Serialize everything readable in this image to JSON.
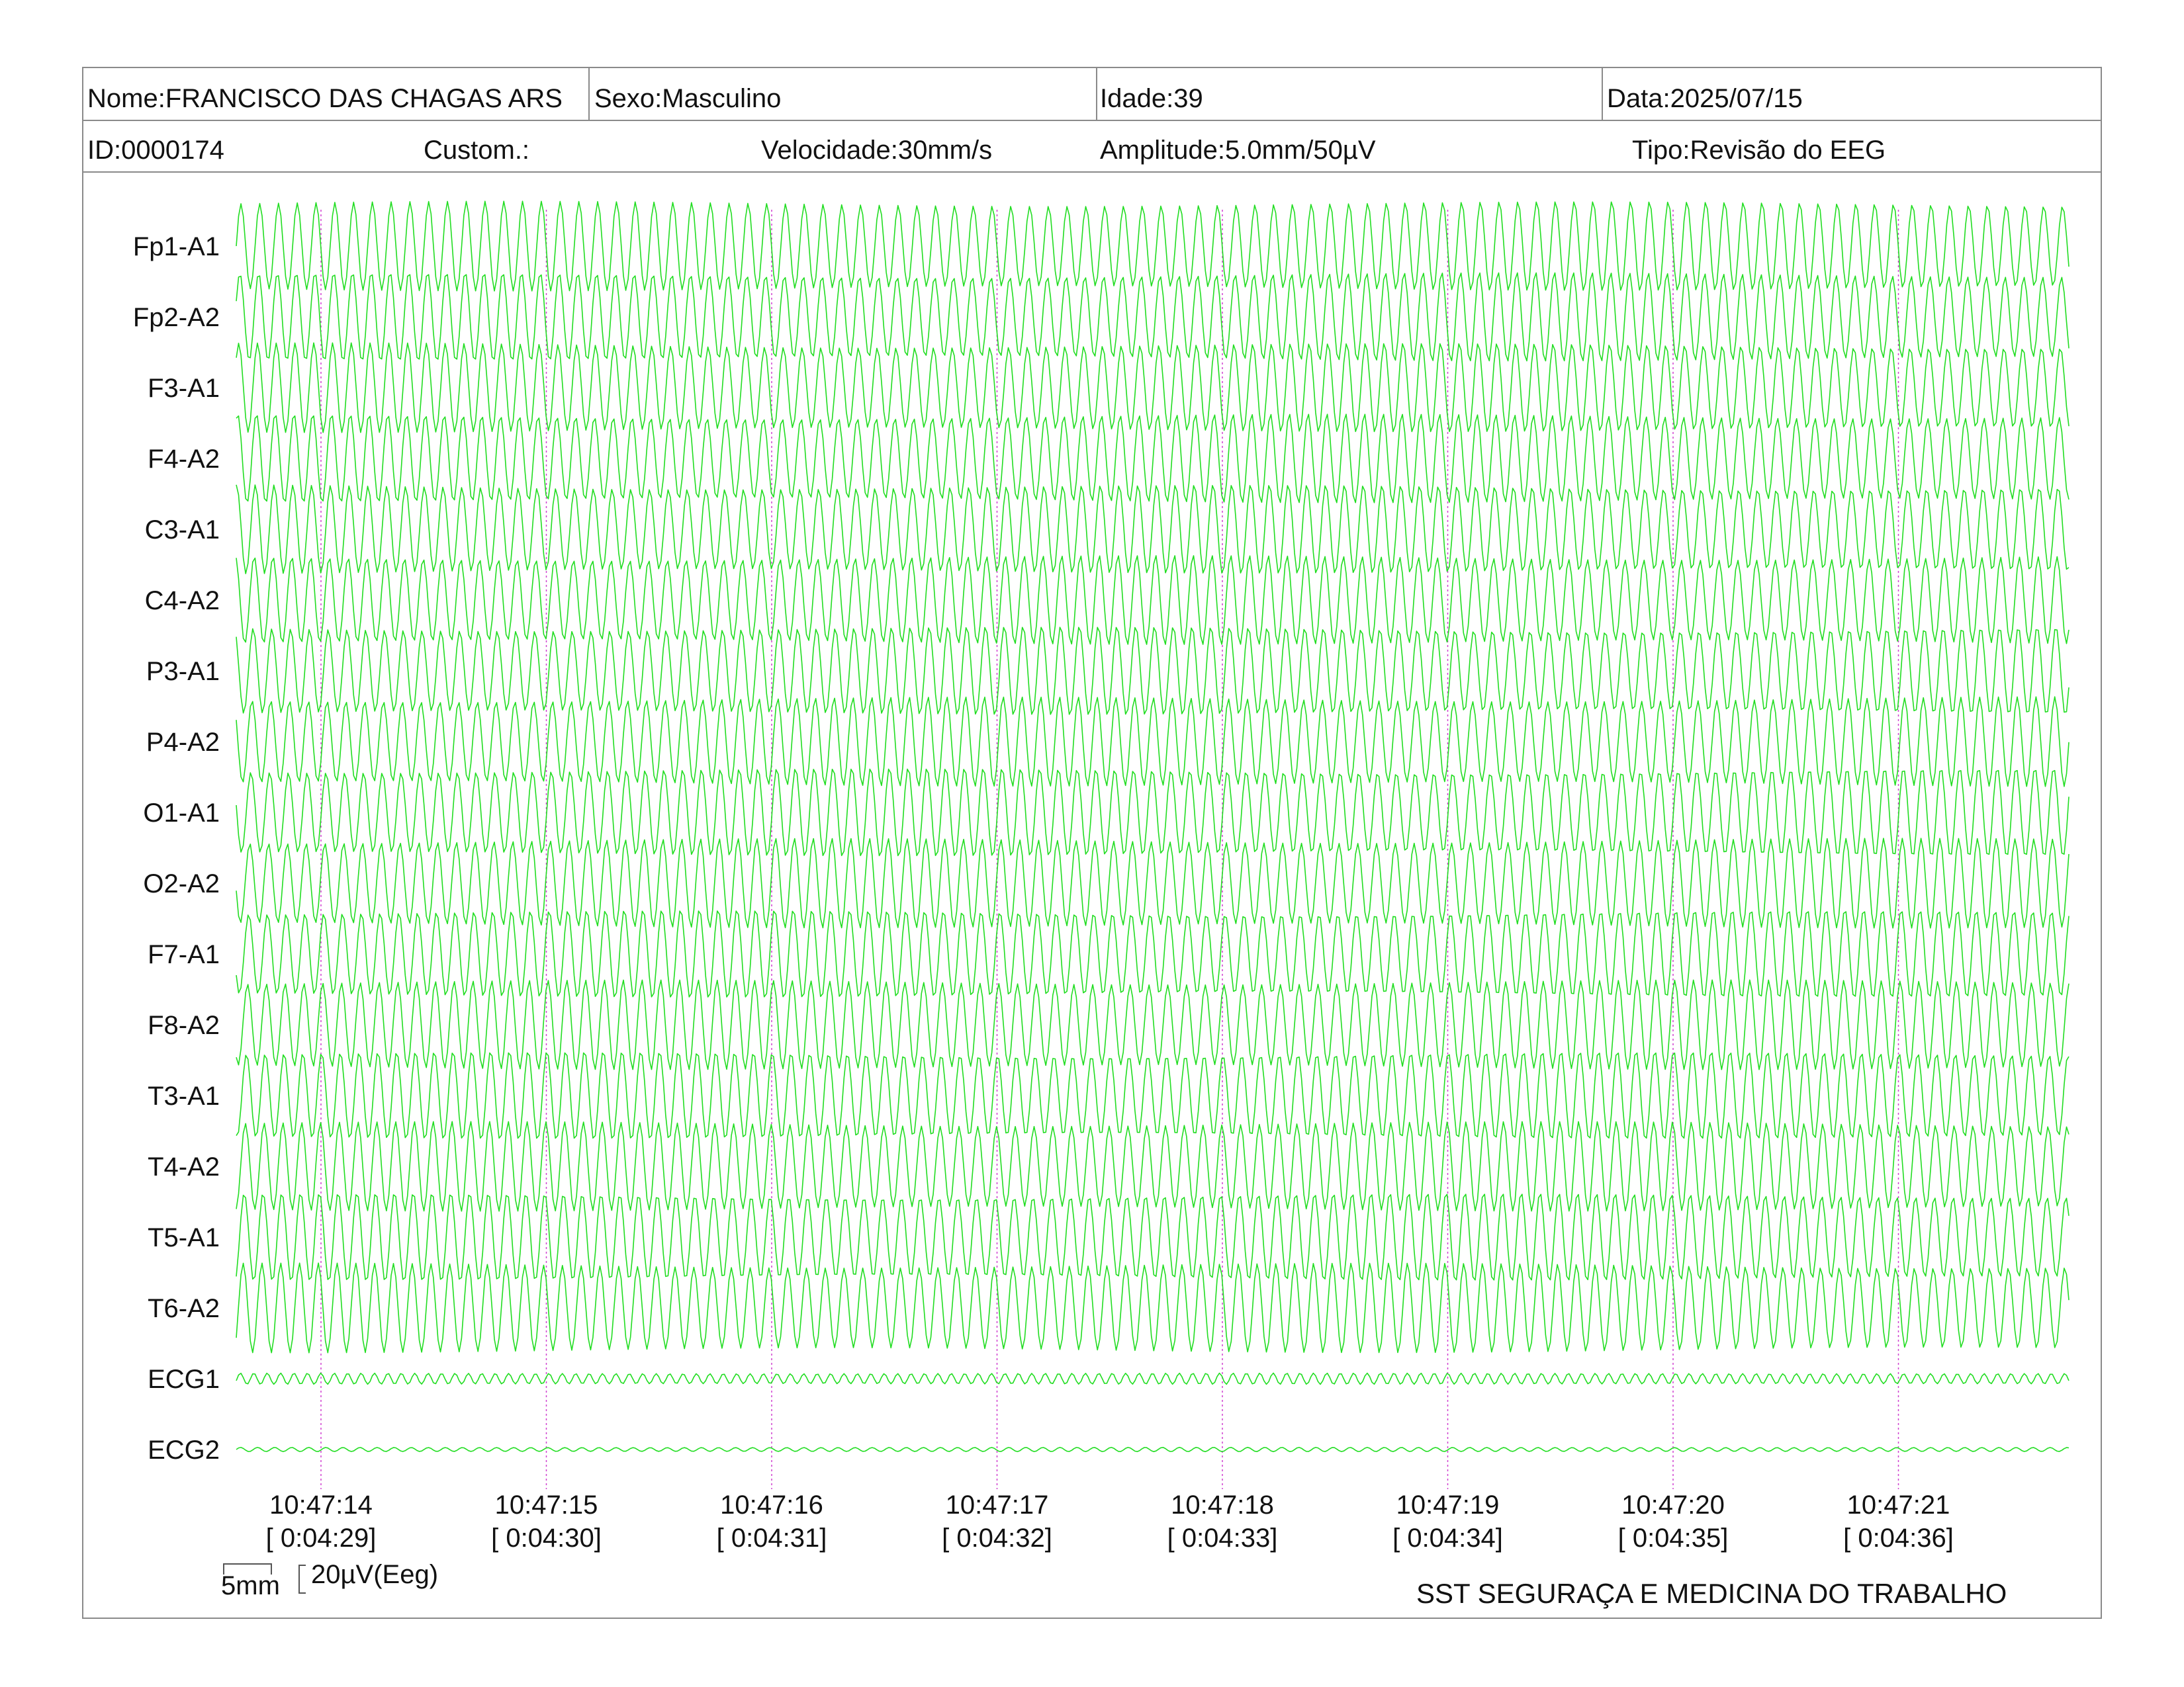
{
  "header": {
    "nome": "Nome:FRANCISCO DAS CHAGAS ARS",
    "sexo": "Sexo:Masculino",
    "idade": "Idade:39",
    "data": "Data:2025/07/15",
    "id": "ID:0000174",
    "custom": "Custom.:",
    "velocidade": "Velocidade:30mm/s",
    "amplitude": "Amplitude:5.0mm/50µV",
    "tipo": "Tipo:Revisão do EEG"
  },
  "footer": {
    "organization": "SST SEGURAÇA E MEDICINA DO TRABALHO",
    "scale_time": "5mm",
    "scale_amp": "20µV(Eeg)"
  },
  "colors": {
    "trace": "#22dd22",
    "marker": "#d040d0",
    "border": "#8a8a8a"
  },
  "chart_data": {
    "type": "line",
    "title": "",
    "channels": [
      "Fp1-A1",
      "Fp2-A2",
      "F3-A1",
      "F4-A2",
      "C3-A1",
      "C4-A2",
      "P3-A1",
      "P4-A2",
      "O1-A1",
      "O2-A2",
      "F7-A1",
      "F8-A2",
      "T3-A1",
      "T4-A2",
      "T5-A1",
      "T6-A2",
      "ECG1",
      "ECG2"
    ],
    "time_marks": [
      {
        "clock": "10:47:14",
        "elapsed": "[ 0:04:29]"
      },
      {
        "clock": "10:47:15",
        "elapsed": "[ 0:04:30]"
      },
      {
        "clock": "10:47:16",
        "elapsed": "[ 0:04:31]"
      },
      {
        "clock": "10:47:17",
        "elapsed": "[ 0:04:32]"
      },
      {
        "clock": "10:47:18",
        "elapsed": "[ 0:04:33]"
      },
      {
        "clock": "10:47:19",
        "elapsed": "[ 0:04:34]"
      },
      {
        "clock": "10:47:20",
        "elapsed": "[ 0:04:35]"
      },
      {
        "clock": "10:47:21",
        "elapsed": "[ 0:04:36]"
      }
    ],
    "x_range_seconds": [
      0,
      8.5
    ],
    "cycles_per_second": 12,
    "eeg_amplitude_uV": 100,
    "ecg1_amplitude_uV": 8,
    "ecg2_amplitude_uV": 3,
    "speed_mm_per_s": 30,
    "sensitivity": "5.0mm/50µV",
    "grid": false
  }
}
